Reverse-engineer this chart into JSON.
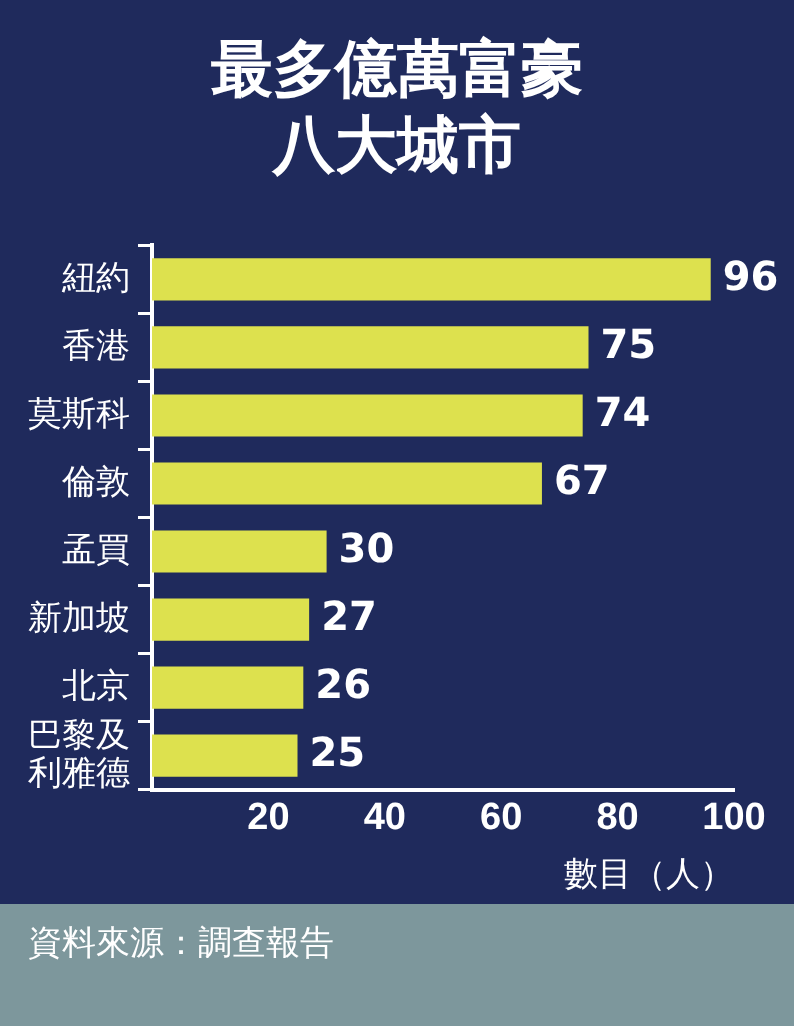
{
  "chart_data": {
    "type": "bar",
    "orientation": "horizontal",
    "title": "最多億萬富豪八大城市",
    "xlabel": "數目（人）",
    "categories": [
      "紐約",
      "香港",
      "莫斯科",
      "倫敦",
      "孟買",
      "新加坡",
      "北京",
      "巴黎及利雅德"
    ],
    "values": [
      96,
      75,
      74,
      67,
      30,
      27,
      26,
      25
    ],
    "color": "#dde14e",
    "xlim": [
      0,
      100
    ],
    "xticks": [
      20,
      40,
      60,
      80,
      100
    ],
    "grid": false,
    "legend": false,
    "data_labels": true,
    "annotations": [
      "資料來源：調查報告"
    ]
  }
}
